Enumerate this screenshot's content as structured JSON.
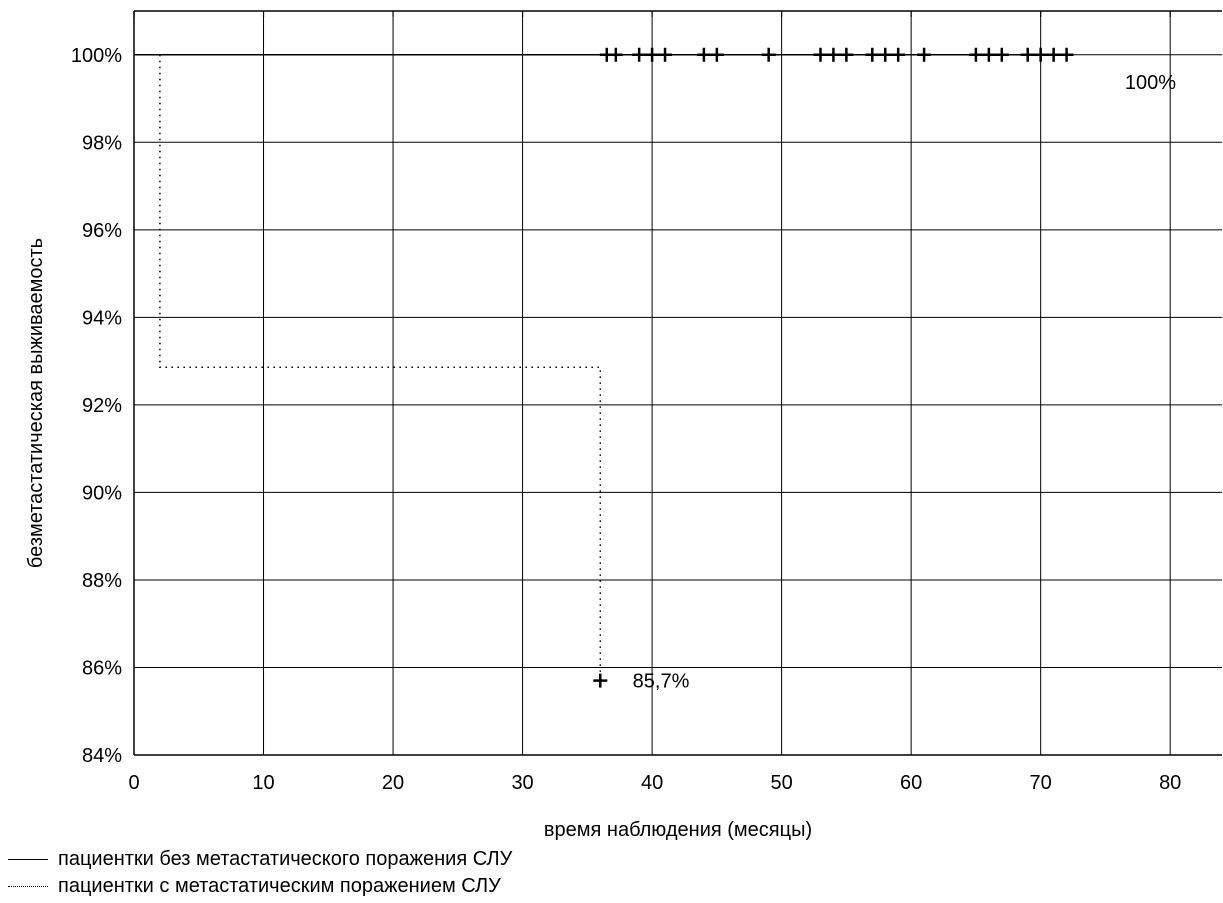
{
  "chart_data": {
    "type": "line",
    "title": "",
    "xlabel": "время наблюдения (месяцы)",
    "ylabel": "безметастатическая выживаемость",
    "xlim": [
      0,
      84
    ],
    "ylim": [
      84,
      101
    ],
    "x_ticks": [
      0,
      10,
      20,
      30,
      40,
      50,
      60,
      70,
      80
    ],
    "y_ticks": [
      84,
      86,
      88,
      90,
      92,
      94,
      96,
      98,
      100
    ],
    "y_tick_labels": [
      "84%",
      "86%",
      "88%",
      "90%",
      "92%",
      "94%",
      "96%",
      "98%",
      "100%"
    ],
    "grid": true,
    "legend_position": "bottom-left",
    "series": [
      {
        "name": "пациентки без метастатического поражения СЛУ",
        "line_style": "solid",
        "color": "#000000",
        "steps": [
          [
            0,
            100
          ],
          [
            72,
            100
          ]
        ],
        "censored_x": [
          36.5,
          37.2,
          39,
          40,
          41,
          44,
          45,
          49,
          53,
          54,
          55,
          57,
          58,
          59,
          61,
          65,
          66,
          67,
          69,
          70,
          71,
          72
        ],
        "censored_y": 100,
        "end_label": "100%"
      },
      {
        "name": "пациентки с метастатическим поражением СЛУ",
        "line_style": "dotted",
        "color": "#000000",
        "steps": [
          [
            2,
            100
          ],
          [
            2,
            92.86
          ],
          [
            36,
            92.86
          ],
          [
            36,
            85.7
          ]
        ],
        "censored_x": [
          36
        ],
        "censored_y": 85.7,
        "end_label": "85,7%"
      }
    ]
  }
}
